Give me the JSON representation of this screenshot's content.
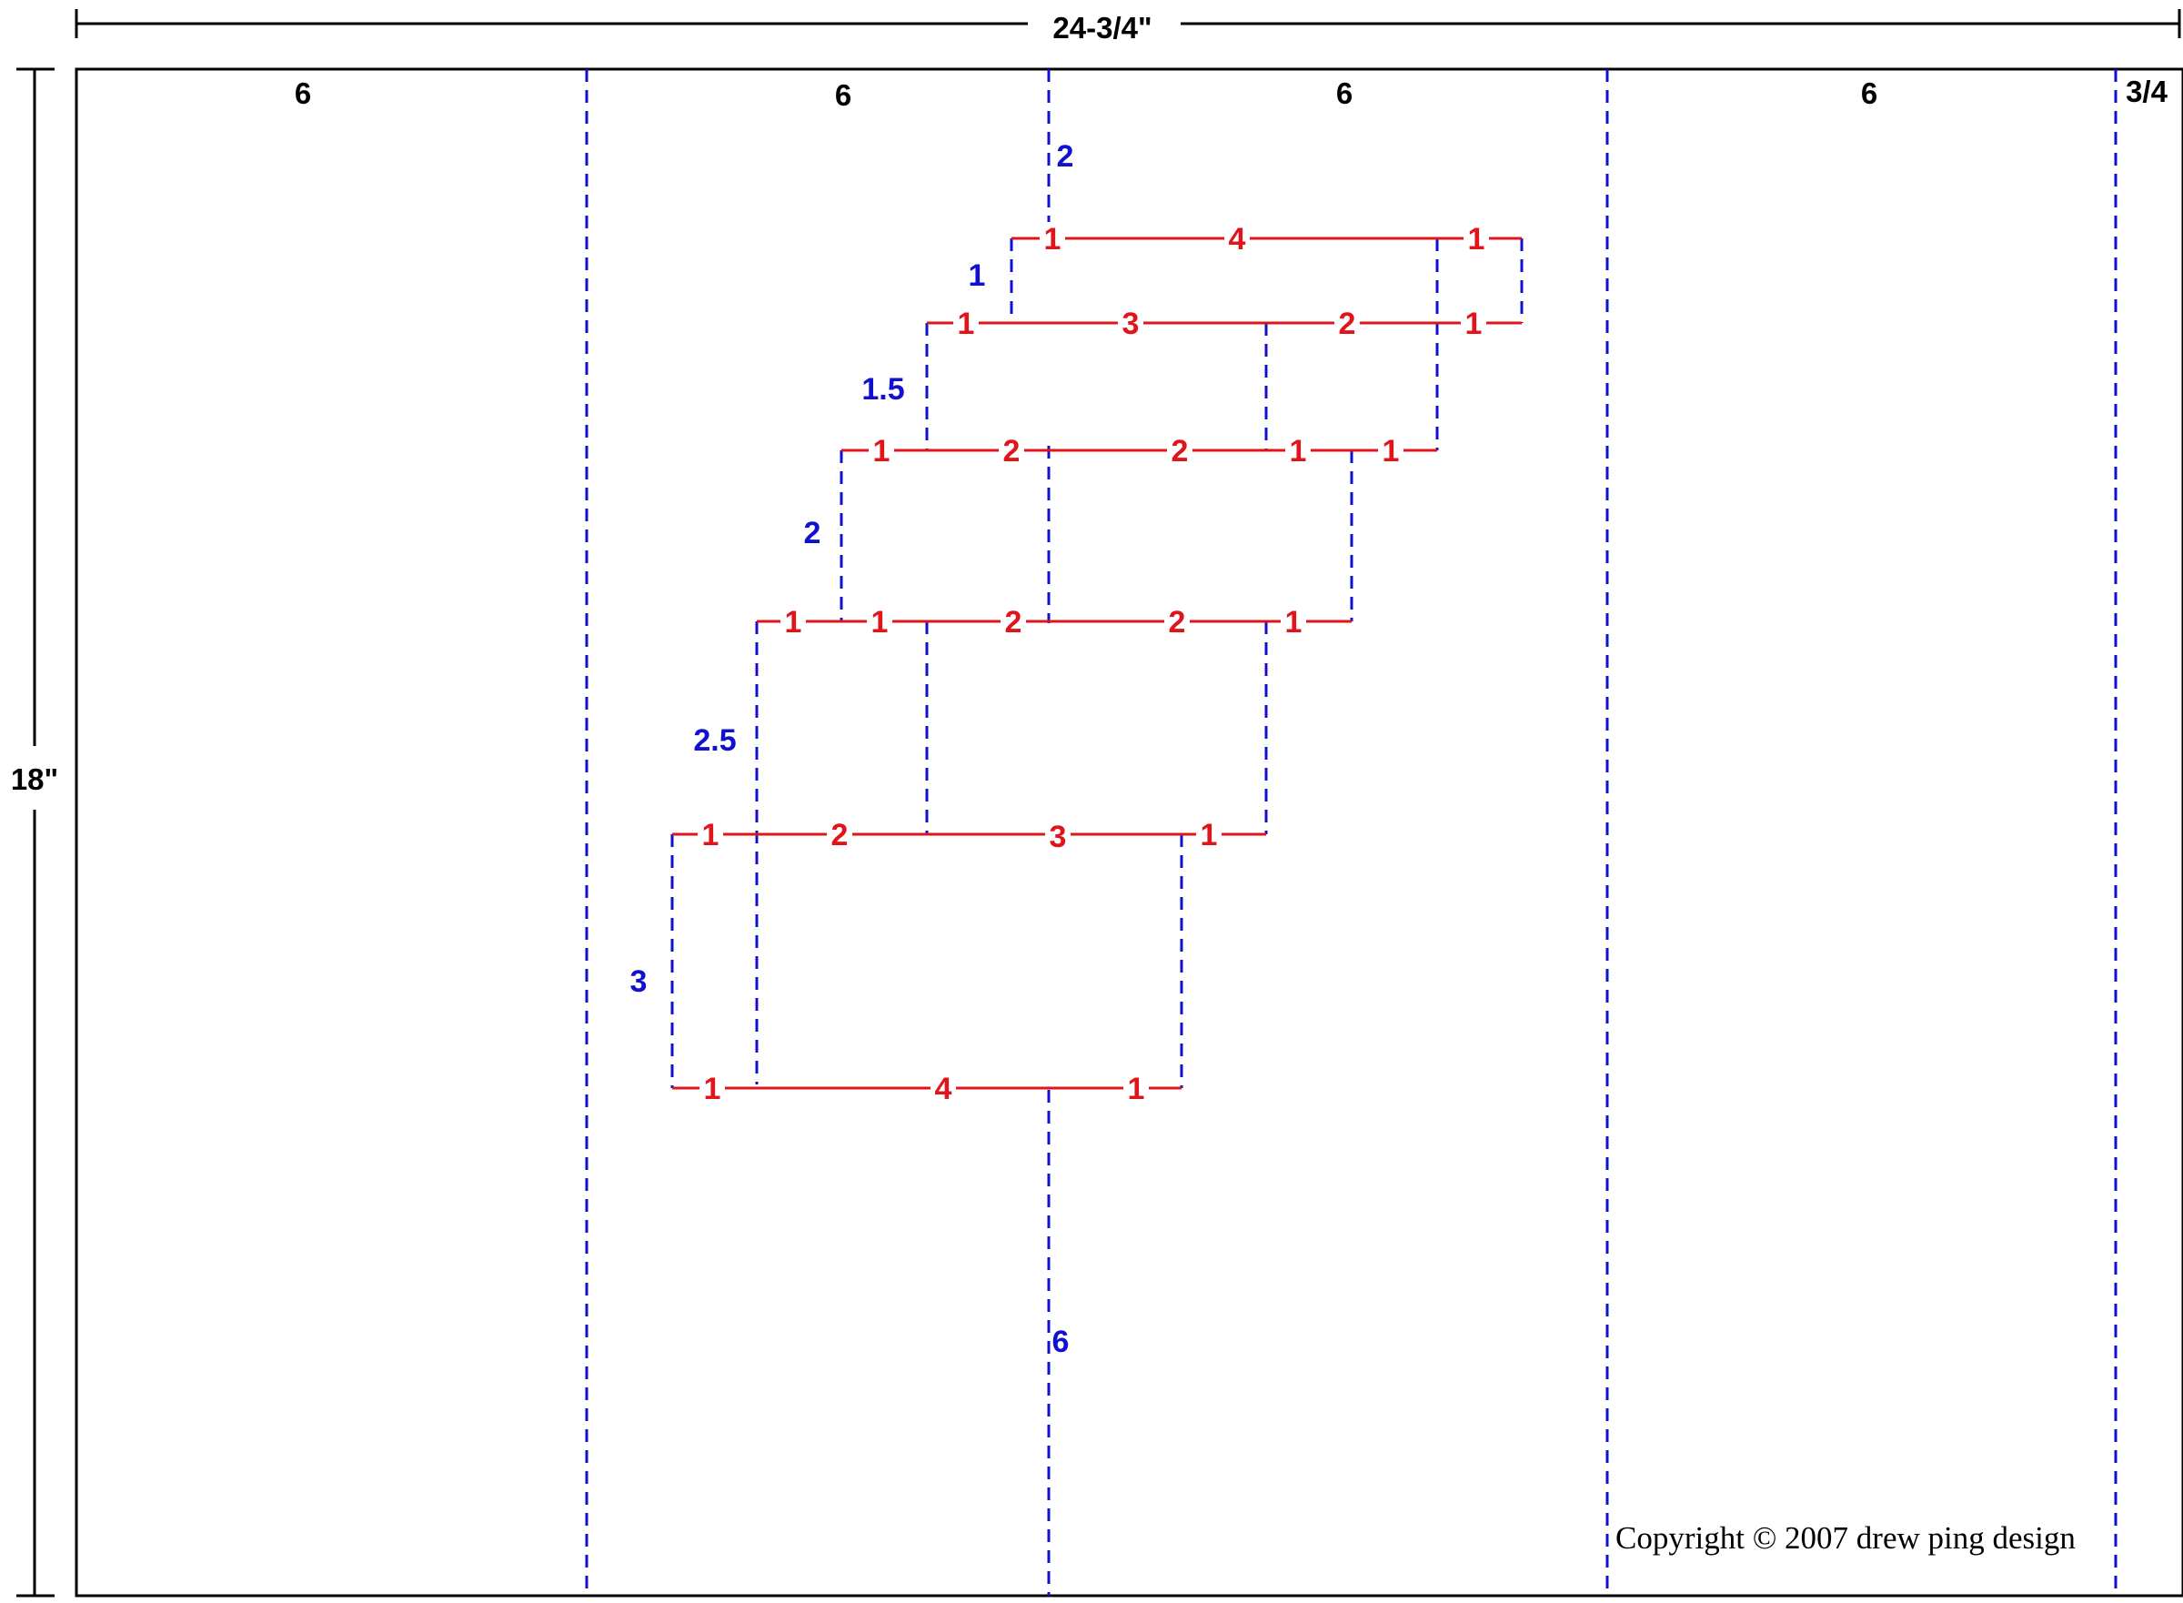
{
  "dimensions": {
    "overall_width": "24-3/4\"",
    "overall_height": "18\"",
    "column_widths": [
      "6",
      "6",
      "6",
      "6",
      "3/4"
    ]
  },
  "fold_depths": [
    "2",
    "1",
    "1.5",
    "2",
    "2.5",
    "3",
    "6"
  ],
  "cut_rows": [
    {
      "segments": [
        "1",
        "4",
        "1"
      ]
    },
    {
      "segments": [
        "1",
        "3",
        "2",
        "1"
      ]
    },
    {
      "segments": [
        "1",
        "2",
        "2",
        "1",
        "1"
      ]
    },
    {
      "segments": [
        "1",
        "1",
        "2",
        "2",
        "1"
      ]
    },
    {
      "segments": [
        "1",
        "2",
        "3",
        "1"
      ]
    },
    {
      "segments": [
        "1",
        "4",
        "1"
      ]
    }
  ],
  "copyright": "Copyright © 2007 drew ping design",
  "colors": {
    "cut_line": "#e0141b",
    "fold_line": "#1010d0",
    "outline": "#000000",
    "background": "#ffffff"
  }
}
